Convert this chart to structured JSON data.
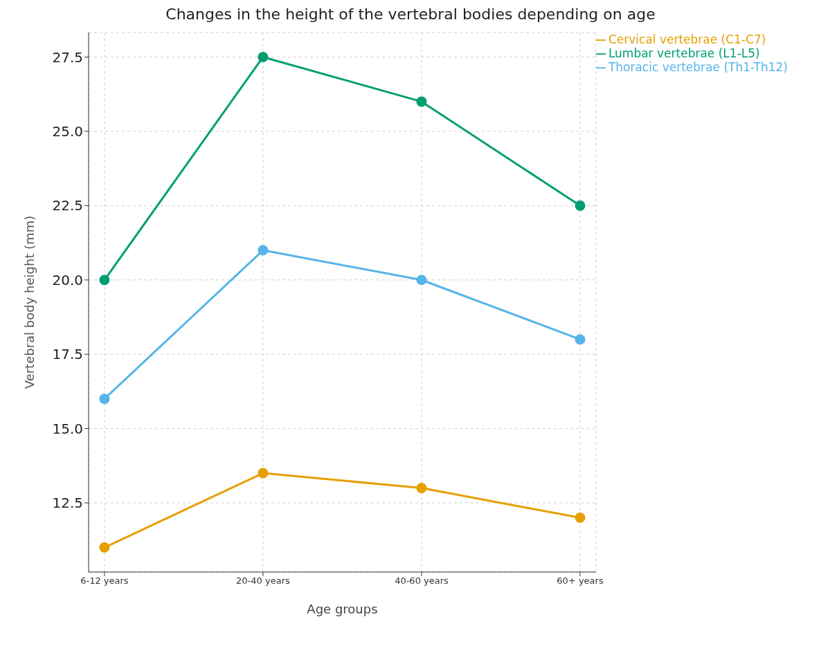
{
  "chart_data": {
    "type": "line",
    "title": "Changes in the height of the vertebral bodies depending on age",
    "xlabel": "Age groups",
    "ylabel": "Vertebral body height (mm)",
    "categories": [
      "6-12 years",
      "20-40 years",
      "40-60 years",
      "60+ years"
    ],
    "series": [
      {
        "name": "Cervical vertebrae (C1-C7)",
        "color": "#e69f00",
        "values": [
          11,
          13.5,
          13,
          12
        ]
      },
      {
        "name": "Thoracic vertebrae (Th1-Th12)",
        "color": "#56b4e9",
        "values": [
          16,
          21,
          20,
          18
        ]
      },
      {
        "name": "Lumbar vertebrae (L1-L5)",
        "color": "#009e73",
        "values": [
          20,
          27.5,
          26,
          22.5
        ]
      }
    ],
    "ylim": [
      10.175,
      28.325
    ],
    "yticks": [
      {
        "value": 12.5,
        "label": "12.5"
      },
      {
        "value": 15,
        "label": "15.0"
      },
      {
        "value": 17.5,
        "label": "17.5"
      },
      {
        "value": 20,
        "label": "20.0"
      },
      {
        "value": 22.5,
        "label": "22.5"
      },
      {
        "value": 25,
        "label": "25.0"
      },
      {
        "value": 27.5,
        "label": "27.5"
      }
    ],
    "grid": true,
    "legend": "top right",
    "marker": "circle",
    "line_style": "solid"
  }
}
